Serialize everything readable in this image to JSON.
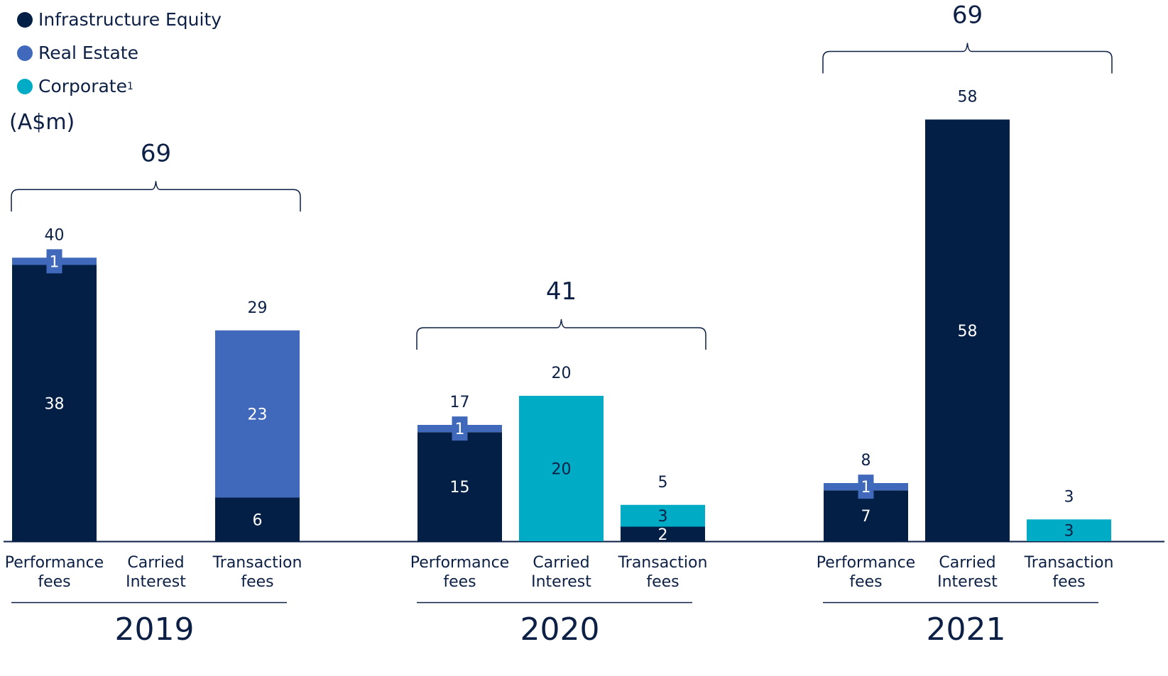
{
  "chart_data": {
    "type": "bar",
    "stacked": true,
    "unit": "(A$m)",
    "colors": {
      "Infrastructure Equity": "#031f45",
      "Real Estate": "#4169bb",
      "Corporate": "#00abc6"
    },
    "legend": [
      {
        "name": "Infrastructure Equity",
        "label": "Infrastructure Equity",
        "sup": "",
        "color": "#031f45"
      },
      {
        "name": "Real Estate",
        "label": "Real Estate",
        "sup": "",
        "color": "#4169bb"
      },
      {
        "name": "Corporate",
        "label": "Corporate",
        "sup": "1",
        "color": "#00abc6"
      }
    ],
    "series_order": [
      "Infrastructure Equity",
      "Real Estate",
      "Corporate"
    ],
    "groups": [
      {
        "year": "2019",
        "bracket_total": "69",
        "bars": [
          {
            "label": [
              "Performance",
              "fees"
            ],
            "total": "40",
            "segments": [
              {
                "series": "Infrastructure Equity",
                "value": 38,
                "label": "38"
              },
              {
                "series": "Real Estate",
                "value": 1,
                "label": "1"
              }
            ]
          },
          {
            "label": [
              "Carried",
              "Interest"
            ],
            "total": "",
            "segments": []
          },
          {
            "label": [
              "Transaction",
              "fees"
            ],
            "total": "29",
            "segments": [
              {
                "series": "Infrastructure Equity",
                "value": 6,
                "label": "6"
              },
              {
                "series": "Real Estate",
                "value": 23,
                "label": "23"
              }
            ]
          }
        ]
      },
      {
        "year": "2020",
        "bracket_total": "41",
        "bars": [
          {
            "label": [
              "Performance",
              "fees"
            ],
            "total": "17",
            "segments": [
              {
                "series": "Infrastructure Equity",
                "value": 15,
                "label": "15"
              },
              {
                "series": "Real Estate",
                "value": 1,
                "label": "1"
              }
            ]
          },
          {
            "label": [
              "Carried",
              "Interest"
            ],
            "total": "20",
            "segments": [
              {
                "series": "Corporate",
                "value": 20,
                "label": "20"
              }
            ]
          },
          {
            "label": [
              "Transaction",
              "fees"
            ],
            "total": "5",
            "segments": [
              {
                "series": "Infrastructure Equity",
                "value": 2,
                "label": "2"
              },
              {
                "series": "Corporate",
                "value": 3,
                "label": "3"
              }
            ]
          }
        ]
      },
      {
        "year": "2021",
        "bracket_total": "69",
        "bars": [
          {
            "label": [
              "Performance",
              "fees"
            ],
            "total": "8",
            "segments": [
              {
                "series": "Infrastructure Equity",
                "value": 7,
                "label": "7"
              },
              {
                "series": "Real Estate",
                "value": 1,
                "label": "1"
              }
            ]
          },
          {
            "label": [
              "Carried",
              "Interest"
            ],
            "total": "58",
            "segments": [
              {
                "series": "Infrastructure Equity",
                "value": 58,
                "label": "58"
              }
            ]
          },
          {
            "label": [
              "Transaction",
              "fees"
            ],
            "total": "3",
            "segments": [
              {
                "series": "Corporate",
                "value": 3,
                "label": "3"
              }
            ]
          }
        ]
      }
    ]
  }
}
